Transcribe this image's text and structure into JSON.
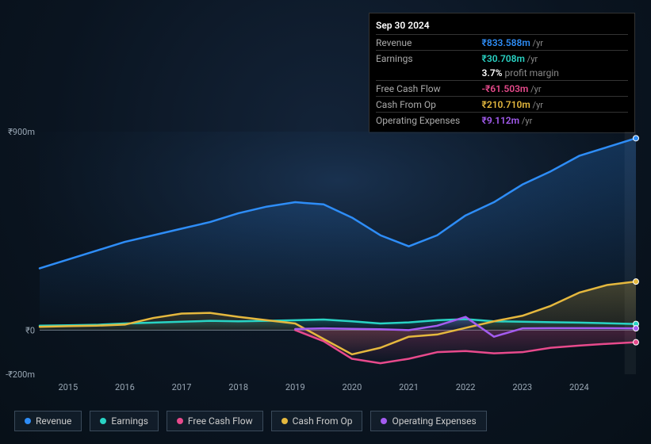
{
  "tooltip": {
    "date": "Sep 30 2024",
    "rows": [
      {
        "label": "Revenue",
        "value": "₹833.588m",
        "unit": "/yr",
        "color": "#2e8df7",
        "sep": true
      },
      {
        "label": "Earnings",
        "value": "₹30.708m",
        "unit": "/yr",
        "color": "#29d3c4",
        "sep": true
      },
      {
        "label": "",
        "value": "3.7%",
        "unit": "profit margin",
        "color": "#ffffff",
        "sep": false
      },
      {
        "label": "Free Cash Flow",
        "value": "-₹61.503m",
        "unit": "/yr",
        "color": "#e84a8c",
        "sep": true
      },
      {
        "label": "Cash From Op",
        "value": "₹210.710m",
        "unit": "/yr",
        "color": "#e5b83e",
        "sep": true
      },
      {
        "label": "Operating Expenses",
        "value": "₹9.112m",
        "unit": "/yr",
        "color": "#a45cf0",
        "sep": true
      }
    ]
  },
  "chart": {
    "type": "line",
    "background_gradient": [
      "#132338",
      "#0a1420"
    ],
    "xlim": [
      2014.5,
      2025.0
    ],
    "ylim": [
      -200,
      900
    ],
    "y_ticks": [
      {
        "v": 900,
        "label": "₹900m"
      },
      {
        "v": 0,
        "label": "₹0"
      },
      {
        "v": -200,
        "label": "-₹200m"
      }
    ],
    "x_ticks": [
      2015,
      2016,
      2017,
      2018,
      2019,
      2020,
      2021,
      2022,
      2023,
      2024
    ],
    "baseline_color": "#6a7a8a",
    "grid_color": "#1a2a3a",
    "line_width": 2.5,
    "forecast_band": {
      "x_start": 2024.8,
      "fill": "rgba(255,255,255,0.05)"
    },
    "series": [
      {
        "name": "Revenue",
        "color": "#2e8df7",
        "fill": "rgba(46,141,247,0.15)",
        "data": [
          [
            2014.5,
            280
          ],
          [
            2015,
            320
          ],
          [
            2015.5,
            360
          ],
          [
            2016,
            400
          ],
          [
            2016.5,
            430
          ],
          [
            2017,
            460
          ],
          [
            2017.5,
            490
          ],
          [
            2018,
            530
          ],
          [
            2018.5,
            560
          ],
          [
            2019,
            580
          ],
          [
            2019.5,
            570
          ],
          [
            2020,
            510
          ],
          [
            2020.5,
            430
          ],
          [
            2021,
            380
          ],
          [
            2021.5,
            430
          ],
          [
            2022,
            520
          ],
          [
            2022.5,
            580
          ],
          [
            2023,
            660
          ],
          [
            2023.5,
            720
          ],
          [
            2024,
            790
          ],
          [
            2024.5,
            830
          ],
          [
            2025,
            870
          ]
        ]
      },
      {
        "name": "Earnings",
        "color": "#29d3c4",
        "fill": "rgba(41,211,196,0.12)",
        "data": [
          [
            2014.5,
            20
          ],
          [
            2015,
            22
          ],
          [
            2015.5,
            24
          ],
          [
            2016,
            30
          ],
          [
            2016.5,
            34
          ],
          [
            2017,
            38
          ],
          [
            2017.5,
            42
          ],
          [
            2018,
            40
          ],
          [
            2018.5,
            42
          ],
          [
            2019,
            45
          ],
          [
            2019.5,
            48
          ],
          [
            2020,
            40
          ],
          [
            2020.5,
            30
          ],
          [
            2021,
            35
          ],
          [
            2021.5,
            45
          ],
          [
            2022,
            50
          ],
          [
            2022.5,
            40
          ],
          [
            2023,
            38
          ],
          [
            2023.5,
            36
          ],
          [
            2024,
            34
          ],
          [
            2024.5,
            31
          ],
          [
            2025,
            28
          ]
        ]
      },
      {
        "name": "Free Cash Flow",
        "color": "#e84a8c",
        "fill": "rgba(232,74,140,0.10)",
        "data": [
          [
            2019,
            0
          ],
          [
            2019.5,
            -50
          ],
          [
            2020,
            -130
          ],
          [
            2020.5,
            -150
          ],
          [
            2021,
            -130
          ],
          [
            2021.5,
            -100
          ],
          [
            2022,
            -95
          ],
          [
            2022.5,
            -105
          ],
          [
            2023,
            -100
          ],
          [
            2023.5,
            -80
          ],
          [
            2024,
            -70
          ],
          [
            2024.5,
            -62
          ],
          [
            2025,
            -55
          ]
        ]
      },
      {
        "name": "Cash From Op",
        "color": "#e5b83e",
        "fill": "rgba(229,184,62,0.10)",
        "data": [
          [
            2014.5,
            15
          ],
          [
            2015,
            18
          ],
          [
            2015.5,
            20
          ],
          [
            2016,
            25
          ],
          [
            2016.5,
            55
          ],
          [
            2017,
            75
          ],
          [
            2017.5,
            78
          ],
          [
            2018,
            60
          ],
          [
            2018.5,
            45
          ],
          [
            2019,
            30
          ],
          [
            2019.5,
            -40
          ],
          [
            2020,
            -110
          ],
          [
            2020.5,
            -80
          ],
          [
            2021,
            -30
          ],
          [
            2021.5,
            -20
          ],
          [
            2022,
            10
          ],
          [
            2022.5,
            40
          ],
          [
            2023,
            65
          ],
          [
            2023.5,
            110
          ],
          [
            2024,
            170
          ],
          [
            2024.5,
            205
          ],
          [
            2025,
            220
          ]
        ]
      },
      {
        "name": "Operating Expenses",
        "color": "#a45cf0",
        "fill": "rgba(164,92,240,0.10)",
        "data": [
          [
            2019,
            5
          ],
          [
            2019.5,
            8
          ],
          [
            2020,
            6
          ],
          [
            2020.5,
            4
          ],
          [
            2021,
            0
          ],
          [
            2021.5,
            20
          ],
          [
            2022,
            60
          ],
          [
            2022.5,
            -30
          ],
          [
            2023,
            8
          ],
          [
            2023.5,
            9
          ],
          [
            2024,
            9
          ],
          [
            2024.5,
            9
          ],
          [
            2025,
            8
          ]
        ]
      }
    ],
    "endpoint_markers": true,
    "endpoint_x": 2025.0
  },
  "legend": [
    {
      "label": "Revenue",
      "color": "#2e8df7"
    },
    {
      "label": "Earnings",
      "color": "#29d3c4"
    },
    {
      "label": "Free Cash Flow",
      "color": "#e84a8c"
    },
    {
      "label": "Cash From Op",
      "color": "#e5b83e"
    },
    {
      "label": "Operating Expenses",
      "color": "#a45cf0"
    }
  ],
  "axis_font": {
    "size": 11,
    "color": "#9aa8b5"
  }
}
